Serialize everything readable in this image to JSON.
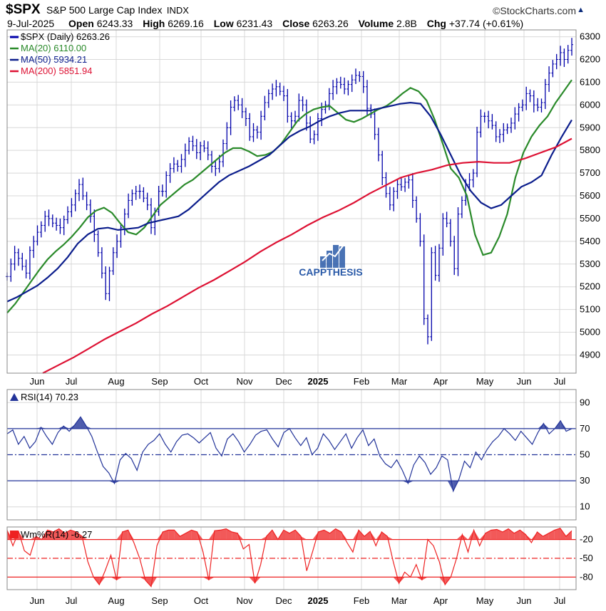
{
  "header": {
    "symbol": "$SPX",
    "description": "S&P 500 Large Cap Index",
    "exchange": "INDX",
    "brand": "©StockCharts.com",
    "date": "9-Jul-2025",
    "open_label": "Open",
    "open": "6243.33",
    "high_label": "High",
    "high": "6269.16",
    "low_label": "Low",
    "low": "6231.43",
    "close_label": "Close",
    "close": "6263.26",
    "volume_label": "Volume",
    "volume": "2.8B",
    "chg_label": "Chg",
    "chg": "+37.74 (+0.61%)"
  },
  "watermark": "CAPPTHESIS",
  "colors": {
    "price": "#0000aa",
    "ma20": "#2a8a2a",
    "ma50": "#0b1d8c",
    "ma200": "#dd1133",
    "rsi": "#223399",
    "willr": "#ee2222",
    "grid": "#d8d8d8",
    "watermark": "#2a5aa8"
  },
  "chart_data": [
    {
      "type": "line",
      "panel": "price",
      "legend": [
        "$SPX (Daily) 6263.26",
        "MA(20) 6110.00",
        "MA(50) 5934.21",
        "MA(200) 5851.94"
      ],
      "x_labels": [
        "Jun",
        "Jul",
        "Aug",
        "Sep",
        "Oct",
        "Nov",
        "Dec",
        "2025",
        "Feb",
        "Mar",
        "Apr",
        "May",
        "Jun",
        "Jul"
      ],
      "y_ticks": [
        4900,
        5000,
        5100,
        5200,
        5300,
        5400,
        5500,
        5600,
        5700,
        5800,
        5900,
        6000,
        6100,
        6200,
        6300
      ],
      "ylim": [
        4820,
        6330
      ],
      "series": [
        {
          "name": "$SPX (Daily)",
          "style": "ohlc",
          "values": [
            5245,
            5300,
            5350,
            5325,
            5290,
            5260,
            5360,
            5400,
            5440,
            5470,
            5510,
            5500,
            5480,
            5470,
            5460,
            5495,
            5530,
            5560,
            5610,
            5650,
            5600,
            5560,
            5510,
            5430,
            5350,
            5260,
            5170,
            5270,
            5350,
            5400,
            5460,
            5520,
            5580,
            5610,
            5620,
            5620,
            5590,
            5560,
            5460,
            5530,
            5620,
            5620,
            5690,
            5720,
            5740,
            5730,
            5760,
            5800,
            5840,
            5820,
            5790,
            5820,
            5810,
            5780,
            5730,
            5720,
            5750,
            5830,
            5900,
            5990,
            6020,
            6000,
            5970,
            5940,
            5860,
            5890,
            5880,
            5950,
            6010,
            6050,
            6070,
            6080,
            6060,
            6040,
            5950,
            5930,
            5950,
            6020,
            6000,
            5920,
            5850,
            5870,
            5940,
            5980,
            6000,
            6050,
            6080,
            6100,
            6090,
            6070,
            6090,
            6110,
            6130,
            6125,
            6080,
            5985,
            5960,
            5870,
            5780,
            5680,
            5610,
            5560,
            5620,
            5650,
            5640,
            5660,
            5670,
            5580,
            5500,
            5400,
            5060,
            4980,
            5350,
            5250,
            5370,
            5500,
            5480,
            5400,
            5280,
            5520,
            5580,
            5650,
            5670,
            5700,
            5880,
            5950,
            5950,
            5930,
            5910,
            5860,
            5870,
            5890,
            5900,
            5920,
            5960,
            5990,
            6000,
            6050,
            6040,
            6000,
            5990,
            6010,
            6090,
            6140,
            6180,
            6200,
            6230,
            6200,
            6240,
            6265
          ]
        },
        {
          "name": "MA(20)",
          "values": [
            5085,
            5125,
            5175,
            5225,
            5275,
            5320,
            5355,
            5385,
            5420,
            5460,
            5505,
            5535,
            5548,
            5525,
            5480,
            5440,
            5430,
            5460,
            5510,
            5560,
            5590,
            5620,
            5650,
            5670,
            5700,
            5730,
            5760,
            5790,
            5810,
            5810,
            5795,
            5775,
            5780,
            5795,
            5830,
            5880,
            5930,
            5960,
            5980,
            5990,
            5995,
            5965,
            5935,
            5925,
            5940,
            5960,
            5980,
            5995,
            6020,
            6050,
            6075,
            6060,
            6020,
            5935,
            5830,
            5720,
            5680,
            5600,
            5430,
            5340,
            5350,
            5420,
            5520,
            5680,
            5790,
            5860,
            5910,
            5950,
            6010,
            6060,
            6110
          ]
        },
        {
          "name": "MA(50)",
          "values": [
            5135,
            5155,
            5180,
            5205,
            5240,
            5280,
            5330,
            5390,
            5430,
            5455,
            5460,
            5450,
            5455,
            5460,
            5480,
            5490,
            5500,
            5510,
            5540,
            5580,
            5620,
            5660,
            5690,
            5710,
            5730,
            5755,
            5780,
            5820,
            5860,
            5885,
            5905,
            5930,
            5950,
            5965,
            5975,
            5975,
            5975,
            5985,
            5995,
            6005,
            6010,
            6005,
            5950,
            5870,
            5780,
            5690,
            5620,
            5570,
            5545,
            5560,
            5600,
            5640,
            5660,
            5690,
            5780,
            5860,
            5934
          ]
        },
        {
          "name": "MA(200)",
          "values": [
            4820,
            4855,
            4890,
            4930,
            4970,
            5005,
            5040,
            5080,
            5115,
            5155,
            5195,
            5230,
            5270,
            5310,
            5355,
            5395,
            5430,
            5470,
            5505,
            5535,
            5570,
            5610,
            5645,
            5680,
            5700,
            5715,
            5735,
            5745,
            5750,
            5745,
            5745,
            5765,
            5790,
            5815,
            5852
          ]
        }
      ]
    },
    {
      "type": "line",
      "panel": "rsi",
      "legend": "RSI(14) 70.23",
      "y_ticks": [
        90,
        70,
        50,
        30,
        10
      ],
      "ylim": [
        0,
        100
      ],
      "reference_lines": [
        30,
        50,
        70
      ],
      "series": [
        {
          "name": "RSI(14)",
          "values": [
            66,
            69,
            58,
            64,
            55,
            60,
            71,
            64,
            58,
            67,
            72,
            68,
            73,
            79,
            72,
            64,
            52,
            41,
            36,
            28,
            46,
            51,
            47,
            38,
            52,
            58,
            61,
            66,
            58,
            52,
            60,
            65,
            66,
            63,
            59,
            63,
            67,
            55,
            49,
            62,
            66,
            60,
            52,
            58,
            65,
            68,
            69,
            62,
            56,
            67,
            70,
            63,
            57,
            63,
            50,
            55,
            66,
            61,
            54,
            60,
            66,
            55,
            63,
            69,
            57,
            62,
            49,
            43,
            40,
            46,
            38,
            28,
            42,
            49,
            44,
            35,
            40,
            49,
            46,
            22,
            31,
            45,
            40,
            52,
            46,
            54,
            60,
            64,
            70,
            66,
            61,
            68,
            63,
            58,
            67,
            74,
            66,
            70,
            76,
            68,
            70
          ]
        }
      ]
    },
    {
      "type": "area",
      "panel": "willr",
      "legend": "Wm%R(14) -6.27",
      "y_ticks": [
        -20,
        -50,
        -80
      ],
      "ylim": [
        -100,
        0
      ],
      "reference_lines": [
        -20,
        -50,
        -80
      ],
      "series": [
        {
          "name": "Wm%R(14)",
          "values": [
            -5,
            -30,
            -8,
            -38,
            -45,
            -15,
            -20,
            -5,
            -8,
            -3,
            -10,
            -5,
            -8,
            -15,
            -55,
            -80,
            -92,
            -70,
            -45,
            -85,
            -8,
            -5,
            -25,
            -50,
            -85,
            -95,
            -30,
            -8,
            -5,
            -5,
            -15,
            -10,
            -5,
            -8,
            -40,
            -85,
            -6,
            -5,
            -3,
            -8,
            -10,
            -35,
            -28,
            -90,
            -60,
            -15,
            -5,
            -20,
            -5,
            -10,
            -5,
            -15,
            -70,
            -40,
            -8,
            -5,
            -10,
            -3,
            -8,
            -25,
            -40,
            -5,
            -15,
            -7,
            -30,
            -8,
            -15,
            -55,
            -90,
            -72,
            -80,
            -60,
            -85,
            -20,
            -30,
            -55,
            -92,
            -80,
            -50,
            -12,
            -40,
            -5,
            -30,
            -10,
            -5,
            -4,
            -8,
            -3,
            -10,
            -5,
            -12,
            -25,
            -8,
            -15,
            -10,
            -5,
            -2,
            -15,
            -6
          ]
        }
      ]
    }
  ]
}
